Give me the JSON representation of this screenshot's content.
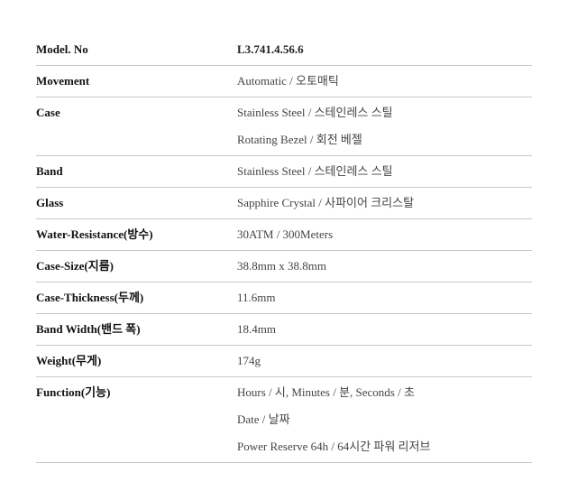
{
  "specs": [
    {
      "label": "Model. No",
      "values": [
        "L3.741.4.56.6"
      ]
    },
    {
      "label": "Movement",
      "values": [
        "Automatic / 오토매틱"
      ]
    },
    {
      "label": "Case",
      "values": [
        "Stainless Steel / 스테인레스 스틸",
        "Rotating Bezel / 회전 베젤"
      ]
    },
    {
      "label": "Band",
      "values": [
        "Stainless Steel / 스테인레스 스틸"
      ]
    },
    {
      "label": "Glass",
      "values": [
        "Sapphire Crystal / 사파이어 크리스탈"
      ]
    },
    {
      "label": "Water-Resistance(방수)",
      "values": [
        "30ATM / 300Meters"
      ]
    },
    {
      "label": "Case-Size(지름)",
      "values": [
        "38.8mm x 38.8mm"
      ]
    },
    {
      "label": "Case-Thickness(두께)",
      "values": [
        "11.6mm"
      ]
    },
    {
      "label": "Band Width(밴드 폭)",
      "values": [
        "18.4mm"
      ]
    },
    {
      "label": "Weight(무게)",
      "values": [
        "174g"
      ]
    },
    {
      "label": "Function(기능)",
      "values": [
        "Hours / 시, Minutes / 분, Seconds / 초",
        "Date / 날짜",
        "Power Reserve 64h / 64시간 파워 리저브"
      ]
    }
  ]
}
